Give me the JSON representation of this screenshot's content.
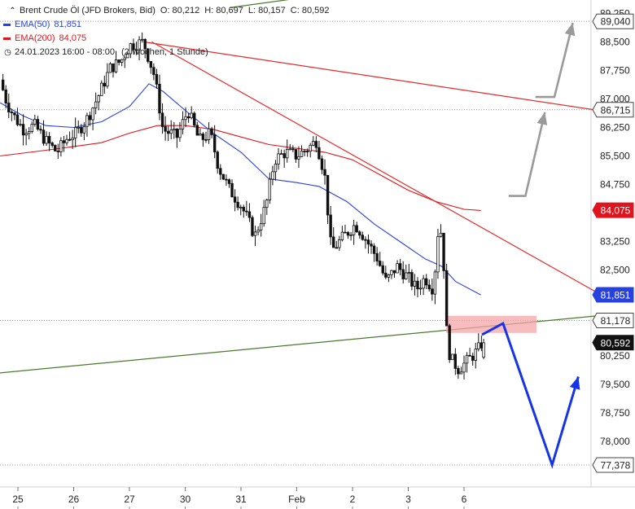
{
  "legend": {
    "instrument": "Brent Crude Öl (JFD Brokers, Bid)",
    "open": "O: 80,212",
    "high": "H: 80,697",
    "low": "L: 80,157",
    "close": "C: 80,592",
    "ema50_label": "EMA(50)",
    "ema50_value": "81,851",
    "ema200_label": "EMA(200)",
    "ema200_value": "84,075",
    "timeframe": "24.01.2023 16:00 - 08:00",
    "period": "(2 Wochen, 1 Stunde)"
  },
  "colors": {
    "candles": "#111111",
    "ema50": "#2741e0",
    "ema200": "#e0141e",
    "trendline_red": "#e52b2b",
    "trendline_green": "#4a7a2e",
    "zone": "#f4a5a8",
    "arrow_blue": "#1534e8",
    "arrow_gray": "#9a9a9a"
  },
  "chart_data": {
    "type": "candlestick",
    "instrument": "Brent Crude Öl (JFD Brokers, Bid)",
    "ylim": [
      76.8,
      89.6
    ],
    "y_ticks": [
      "89,250",
      "88,500",
      "87,750",
      "87,000",
      "86,250",
      "85,500",
      "84,750",
      "83,250",
      "82,500",
      "80,250",
      "79,500",
      "78,750",
      "78,000"
    ],
    "y_tick_values": [
      89.25,
      88.5,
      87.75,
      87.0,
      86.25,
      85.5,
      84.75,
      83.25,
      82.5,
      80.25,
      79.5,
      78.75,
      78.0
    ],
    "x_ticks": [
      "25",
      "26",
      "27",
      "30",
      "31",
      "Feb",
      "2",
      "3",
      "6"
    ],
    "x_tick_positions": [
      0.0,
      1.0,
      2.0,
      3.0,
      4.0,
      5.0,
      6.0,
      7.0,
      8.0
    ],
    "x_range": [
      -0.32,
      10.4
    ],
    "price_badges": [
      {
        "label": "89,040",
        "value": 89.04,
        "style": "outline"
      },
      {
        "label": "86,715",
        "value": 86.715,
        "style": "outline"
      },
      {
        "label": "84,075",
        "value": 84.075,
        "style": "red"
      },
      {
        "label": "81,851",
        "value": 81.851,
        "style": "blue"
      },
      {
        "label": "81,178",
        "value": 81.178,
        "style": "outline"
      },
      {
        "label": "80,592",
        "value": 80.592,
        "style": "black"
      },
      {
        "label": "77,378",
        "value": 77.378,
        "style": "outline"
      }
    ],
    "dotted_levels": [
      89.04,
      86.715,
      81.178,
      77.378
    ],
    "price_anchors": [
      [
        -0.32,
        87.5
      ],
      [
        -0.2,
        86.9
      ],
      [
        -0.05,
        86.5
      ],
      [
        0.1,
        86.2
      ],
      [
        0.3,
        86.3
      ],
      [
        0.5,
        85.9
      ],
      [
        0.7,
        85.6
      ],
      [
        0.9,
        86.0
      ],
      [
        1.05,
        86.1
      ],
      [
        1.25,
        86.5
      ],
      [
        1.45,
        87.1
      ],
      [
        1.65,
        87.8
      ],
      [
        1.85,
        88.0
      ],
      [
        2.0,
        88.4
      ],
      [
        2.25,
        88.5
      ],
      [
        2.45,
        87.6
      ],
      [
        2.6,
        86.2
      ],
      [
        2.85,
        86.0
      ],
      [
        3.05,
        86.7
      ],
      [
        3.25,
        85.9
      ],
      [
        3.45,
        86.1
      ],
      [
        3.6,
        85.2
      ],
      [
        3.8,
        84.6
      ],
      [
        4.0,
        84.2
      ],
      [
        4.1,
        83.9
      ],
      [
        4.25,
        83.4
      ],
      [
        4.45,
        84.2
      ],
      [
        4.6,
        85.4
      ],
      [
        4.8,
        85.6
      ],
      [
        5.0,
        85.5
      ],
      [
        5.2,
        85.7
      ],
      [
        5.35,
        85.9
      ],
      [
        5.5,
        85.0
      ],
      [
        5.62,
        83.0
      ],
      [
        5.85,
        83.4
      ],
      [
        6.05,
        83.7
      ],
      [
        6.2,
        83.4
      ],
      [
        6.45,
        82.8
      ],
      [
        6.6,
        82.2
      ],
      [
        6.8,
        82.6
      ],
      [
        7.0,
        82.3
      ],
      [
        7.15,
        82.0
      ],
      [
        7.3,
        82.3
      ],
      [
        7.45,
        82.0
      ],
      [
        7.55,
        83.8
      ],
      [
        7.62,
        83.2
      ],
      [
        7.68,
        81.0
      ],
      [
        7.75,
        80.2
      ],
      [
        7.9,
        79.9
      ],
      [
        8.05,
        80.1
      ],
      [
        8.25,
        80.4
      ],
      [
        8.32,
        80.59
      ]
    ],
    "ema50": [
      [
        -0.32,
        86.9
      ],
      [
        0.1,
        86.55
      ],
      [
        0.5,
        86.3
      ],
      [
        1.0,
        86.25
      ],
      [
        1.5,
        86.4
      ],
      [
        2.0,
        86.8
      ],
      [
        2.35,
        87.4
      ],
      [
        2.6,
        87.2
      ],
      [
        3.0,
        86.7
      ],
      [
        3.5,
        86.1
      ],
      [
        4.0,
        85.6
      ],
      [
        4.5,
        84.9
      ],
      [
        5.0,
        84.8
      ],
      [
        5.4,
        84.7
      ],
      [
        5.9,
        84.3
      ],
      [
        6.4,
        83.7
      ],
      [
        6.9,
        83.2
      ],
      [
        7.3,
        82.8
      ],
      [
        7.6,
        82.6
      ],
      [
        7.85,
        82.2
      ],
      [
        8.3,
        81.85
      ]
    ],
    "ema200": [
      [
        -0.32,
        85.5
      ],
      [
        0.5,
        85.65
      ],
      [
        1.0,
        85.75
      ],
      [
        1.5,
        85.85
      ],
      [
        2.0,
        86.1
      ],
      [
        2.5,
        86.3
      ],
      [
        3.0,
        86.3
      ],
      [
        3.5,
        86.2
      ],
      [
        4.0,
        86.0
      ],
      [
        4.5,
        85.8
      ],
      [
        5.0,
        85.7
      ],
      [
        5.5,
        85.6
      ],
      [
        6.0,
        85.4
      ],
      [
        6.5,
        85.0
      ],
      [
        7.0,
        84.6
      ],
      [
        7.5,
        84.3
      ],
      [
        8.0,
        84.1
      ],
      [
        8.3,
        84.07
      ]
    ],
    "trendlines": [
      {
        "name": "upper-resistance",
        "color": "#e52b2b",
        "points": [
          [
            2.25,
            88.5
          ],
          [
            10.4,
            86.7
          ]
        ]
      },
      {
        "name": "descending-resistance",
        "color": "#e52b2b",
        "points": [
          [
            2.4,
            88.5
          ],
          [
            10.4,
            81.9
          ]
        ]
      },
      {
        "name": "rising-support",
        "color": "#4a7a2e",
        "points": [
          [
            -0.32,
            79.8
          ],
          [
            10.4,
            81.3
          ]
        ]
      }
    ],
    "zone": {
      "x": [
        7.68,
        9.3
      ],
      "y": [
        80.85,
        81.3
      ]
    },
    "arrow_blue": [
      [
        8.32,
        80.8
      ],
      [
        8.7,
        81.1
      ],
      [
        9.58,
        77.38
      ],
      [
        10.05,
        79.7
      ]
    ],
    "arrows_gray": [
      [
        [
          8.8,
          84.45
        ],
        [
          9.1,
          84.45
        ],
        [
          9.45,
          86.65
        ]
      ],
      [
        [
          9.28,
          87.05
        ],
        [
          9.62,
          87.05
        ],
        [
          9.95,
          89.0
        ]
      ]
    ]
  }
}
